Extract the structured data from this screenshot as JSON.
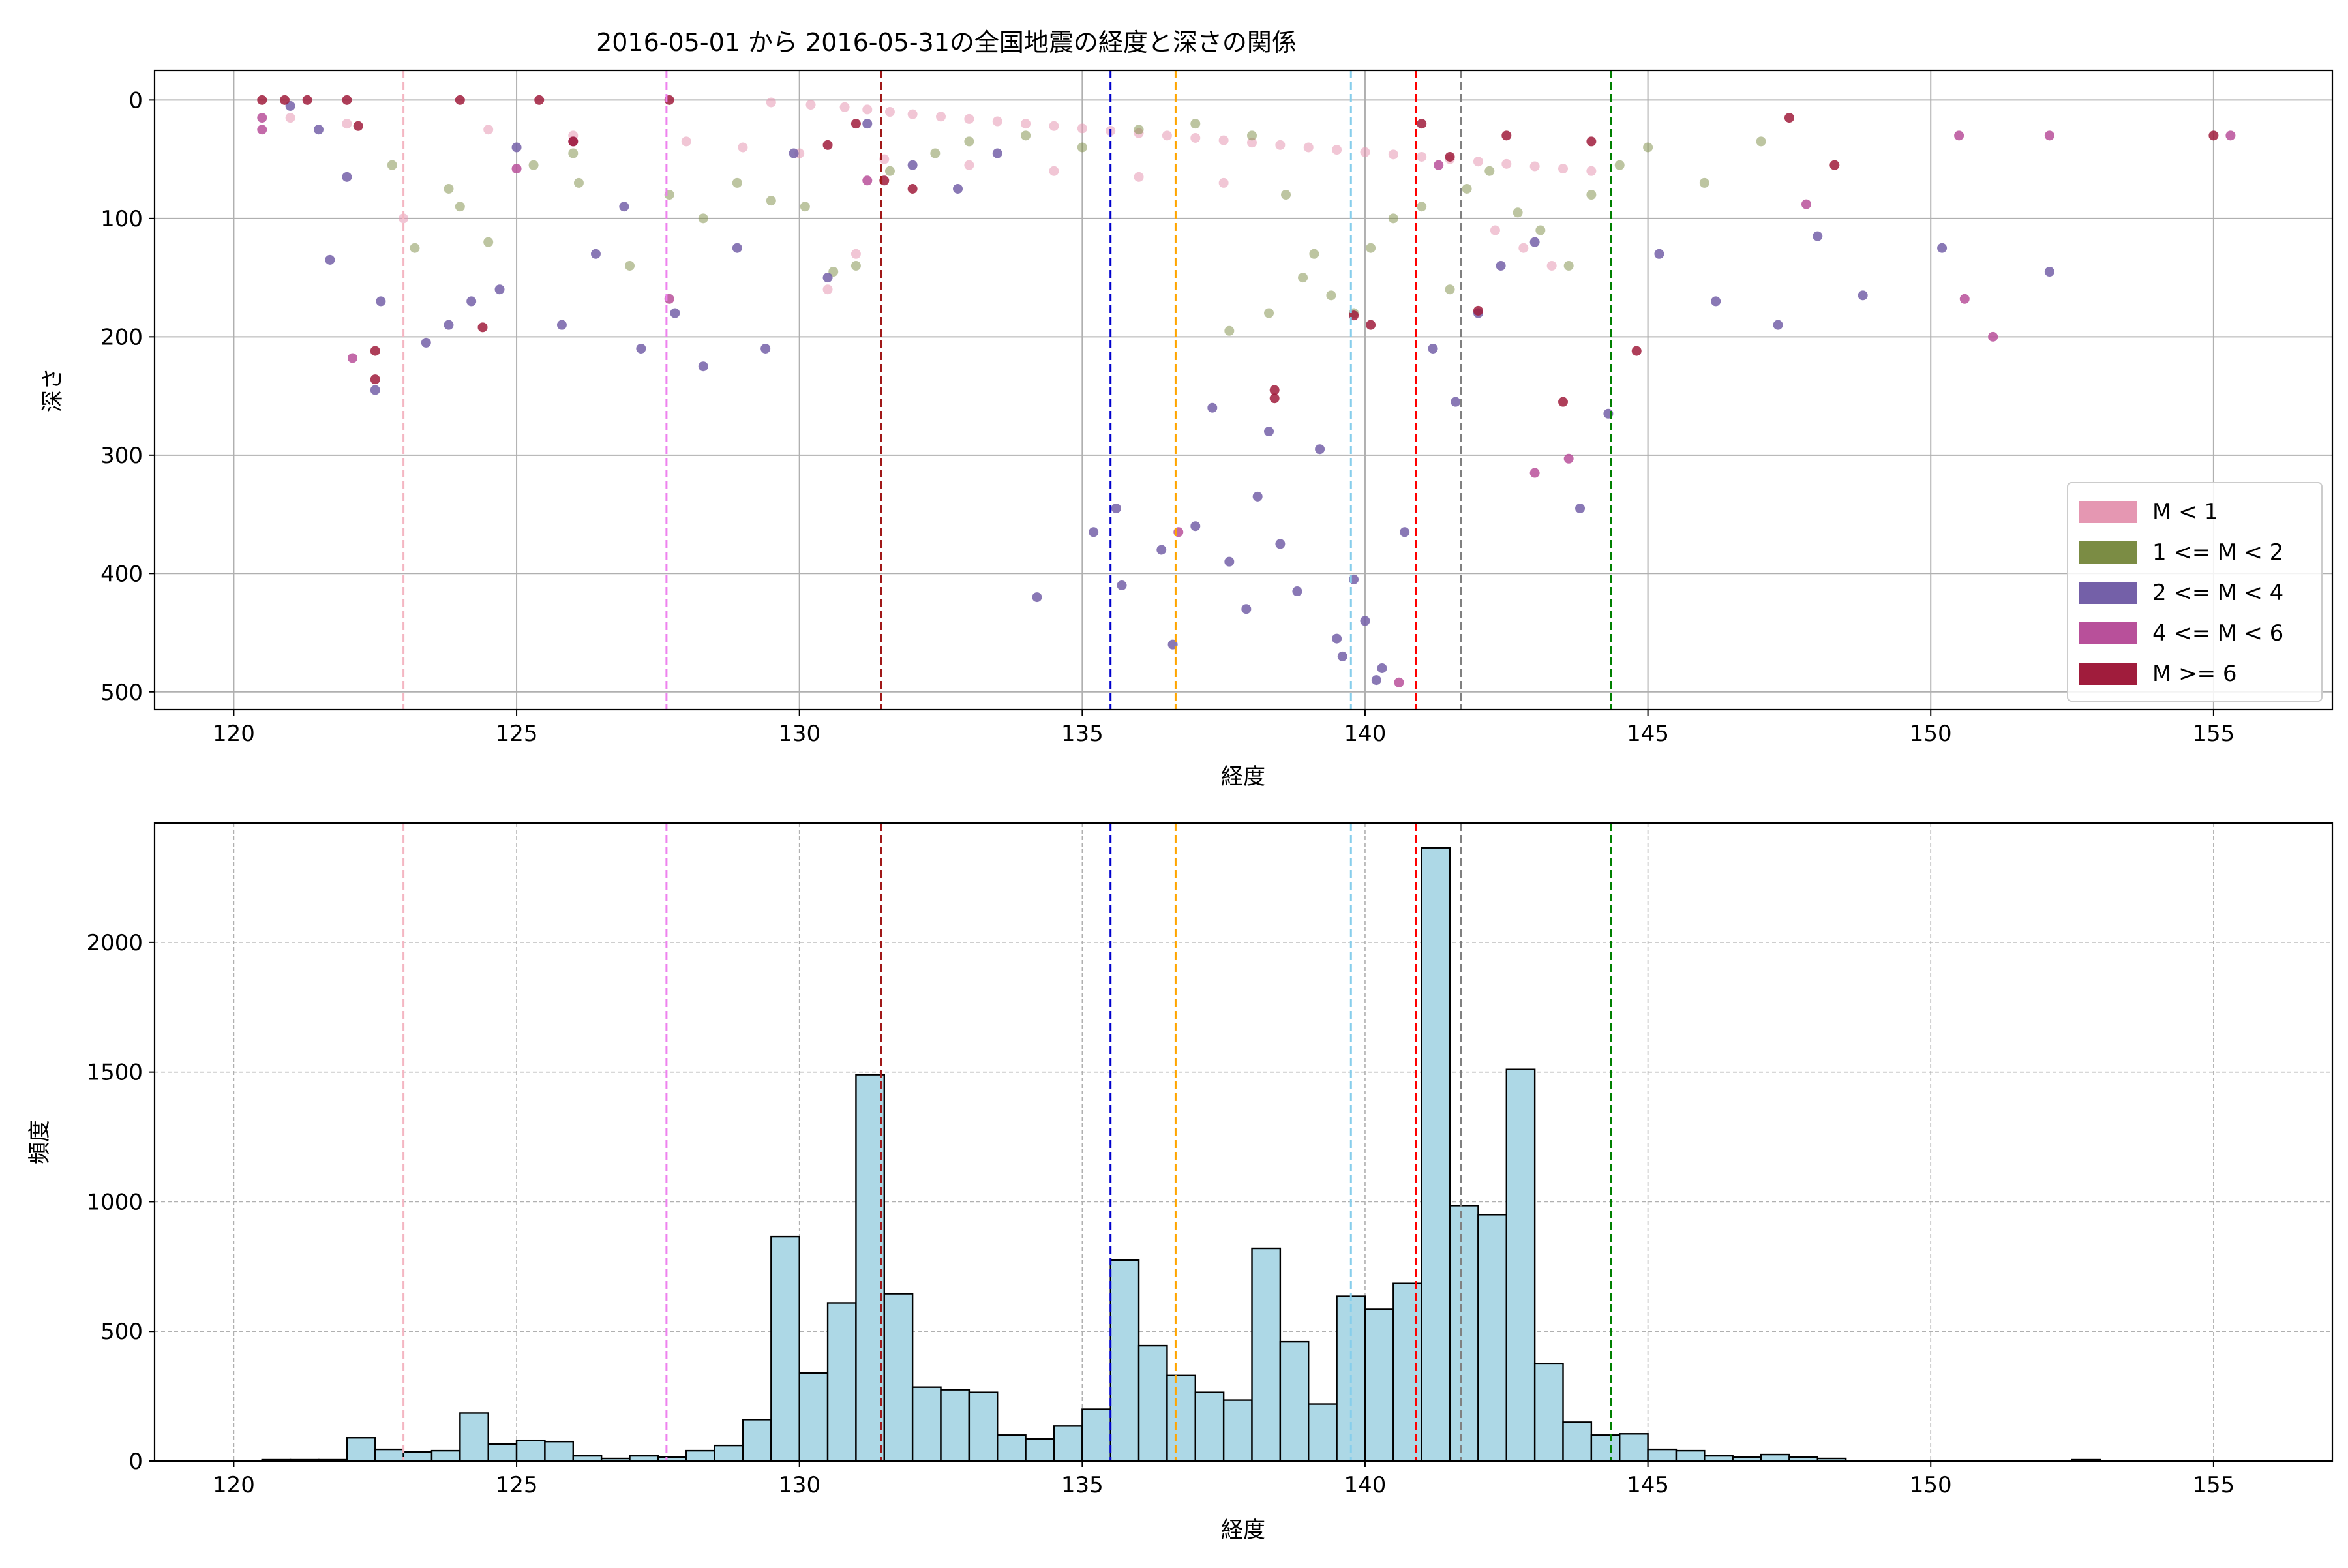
{
  "figure_title": "2016-05-01 から 2016-05-31の全国地震の経度と深さの関係",
  "colors": {
    "m_lt1": "#e597b2",
    "m_1_2": "#7b8c44",
    "m_2_4": "#7460a8",
    "m_4_6": "#b8509a",
    "m_ge6": "#a01c3c",
    "hist_fill": "#add8e6",
    "hist_edge": "#000000"
  },
  "vlines": [
    {
      "x": 123.0,
      "color": "#f4b6c2"
    },
    {
      "x": 127.65,
      "color": "#ee82ee"
    },
    {
      "x": 131.45,
      "color": "#a01818"
    },
    {
      "x": 135.5,
      "color": "#0000cc"
    },
    {
      "x": 136.65,
      "color": "#ffa500"
    },
    {
      "x": 139.75,
      "color": "#87ceeb"
    },
    {
      "x": 140.9,
      "color": "#ff0000"
    },
    {
      "x": 141.7,
      "color": "#808080"
    },
    {
      "x": 144.35,
      "color": "#008000"
    }
  ],
  "chart_data": [
    {
      "type": "scatter",
      "title": "2016-05-01 から 2016-05-31の全国地震の経度と深さの関係",
      "xlabel": "経度",
      "ylabel": "深さ",
      "xlim": [
        118.6,
        157.1
      ],
      "ylim": [
        515,
        -25
      ],
      "y_inverted": true,
      "xticks": [
        120,
        125,
        130,
        135,
        140,
        145,
        150,
        155
      ],
      "yticks": [
        0,
        100,
        200,
        300,
        400,
        500
      ],
      "grid": true,
      "legend_position": "lower-right",
      "legend": [
        "M < 1",
        "1 <= M < 2",
        "2 <= M < 4",
        "4 <= M < 6",
        "M >= 6"
      ],
      "series": [
        {
          "name": "M < 1",
          "color_key": "m_lt1",
          "points": [
            [
              123.0,
              100
            ],
            [
              129.5,
              2
            ],
            [
              130.2,
              4
            ],
            [
              130.8,
              6
            ],
            [
              131.2,
              8
            ],
            [
              131.6,
              10
            ],
            [
              132.0,
              12
            ],
            [
              132.5,
              14
            ],
            [
              133.0,
              16
            ],
            [
              133.5,
              18
            ],
            [
              134.0,
              20
            ],
            [
              134.5,
              22
            ],
            [
              135.0,
              24
            ],
            [
              135.5,
              26
            ],
            [
              136.0,
              28
            ],
            [
              136.5,
              30
            ],
            [
              137.0,
              32
            ],
            [
              137.5,
              34
            ],
            [
              138.0,
              36
            ],
            [
              138.5,
              38
            ],
            [
              139.0,
              40
            ],
            [
              139.5,
              42
            ],
            [
              140.0,
              44
            ],
            [
              140.5,
              46
            ],
            [
              141.0,
              48
            ],
            [
              141.5,
              50
            ],
            [
              142.0,
              52
            ],
            [
              142.5,
              54
            ],
            [
              143.0,
              56
            ],
            [
              143.5,
              58
            ],
            [
              144.0,
              60
            ],
            [
              131.0,
              130
            ],
            [
              130.5,
              160
            ],
            [
              142.3,
              110
            ],
            [
              142.8,
              125
            ],
            [
              143.3,
              140
            ],
            [
              121.0,
              15
            ],
            [
              122.0,
              20
            ],
            [
              124.5,
              25
            ],
            [
              126.0,
              30
            ],
            [
              128.0,
              35
            ],
            [
              129.0,
              40
            ],
            [
              130.0,
              45
            ],
            [
              131.5,
              50
            ],
            [
              133.0,
              55
            ],
            [
              134.5,
              60
            ],
            [
              136.0,
              65
            ],
            [
              137.5,
              70
            ]
          ]
        },
        {
          "name": "1 <= M < 2",
          "color_key": "m_1_2",
          "points": [
            [
              122.8,
              55
            ],
            [
              123.2,
              125
            ],
            [
              123.8,
              75
            ],
            [
              124.5,
              120
            ],
            [
              125.3,
              55
            ],
            [
              126.1,
              70
            ],
            [
              127.0,
              140
            ],
            [
              127.7,
              80
            ],
            [
              128.3,
              100
            ],
            [
              128.9,
              70
            ],
            [
              129.5,
              85
            ],
            [
              130.1,
              90
            ],
            [
              130.6,
              145
            ],
            [
              131.0,
              140
            ],
            [
              131.6,
              60
            ],
            [
              132.4,
              45
            ],
            [
              133.0,
              35
            ],
            [
              134.0,
              30
            ],
            [
              135.0,
              40
            ],
            [
              136.0,
              25
            ],
            [
              137.0,
              20
            ],
            [
              138.0,
              30
            ],
            [
              138.6,
              80
            ],
            [
              138.9,
              150
            ],
            [
              139.1,
              130
            ],
            [
              139.4,
              165
            ],
            [
              139.8,
              180
            ],
            [
              140.1,
              125
            ],
            [
              140.5,
              100
            ],
            [
              141.0,
              90
            ],
            [
              141.5,
              160
            ],
            [
              141.8,
              75
            ],
            [
              142.2,
              60
            ],
            [
              142.7,
              95
            ],
            [
              143.1,
              110
            ],
            [
              143.6,
              140
            ],
            [
              144.0,
              80
            ],
            [
              144.5,
              55
            ],
            [
              145.0,
              40
            ],
            [
              146.0,
              70
            ],
            [
              147.0,
              35
            ],
            [
              137.6,
              195
            ],
            [
              138.3,
              180
            ],
            [
              126.0,
              45
            ],
            [
              124.0,
              90
            ]
          ]
        },
        {
          "name": "2 <= M < 4",
          "color_key": "m_2_4",
          "points": [
            [
              121.0,
              5
            ],
            [
              121.5,
              25
            ],
            [
              121.7,
              135
            ],
            [
              122.0,
              65
            ],
            [
              122.5,
              245
            ],
            [
              122.6,
              170
            ],
            [
              123.4,
              205
            ],
            [
              123.8,
              190
            ],
            [
              124.2,
              170
            ],
            [
              124.7,
              160
            ],
            [
              125.0,
              40
            ],
            [
              125.8,
              190
            ],
            [
              126.4,
              130
            ],
            [
              126.9,
              90
            ],
            [
              127.2,
              210
            ],
            [
              127.8,
              180
            ],
            [
              128.3,
              225
            ],
            [
              128.9,
              125
            ],
            [
              129.4,
              210
            ],
            [
              129.9,
              45
            ],
            [
              130.5,
              150
            ],
            [
              131.2,
              20
            ],
            [
              132.0,
              55
            ],
            [
              132.8,
              75
            ],
            [
              133.5,
              45
            ],
            [
              134.2,
              420
            ],
            [
              135.2,
              365
            ],
            [
              135.6,
              345
            ],
            [
              135.7,
              410
            ],
            [
              136.4,
              380
            ],
            [
              136.6,
              460
            ],
            [
              137.0,
              360
            ],
            [
              137.3,
              260
            ],
            [
              137.6,
              390
            ],
            [
              137.9,
              430
            ],
            [
              138.1,
              335
            ],
            [
              138.3,
              280
            ],
            [
              138.5,
              375
            ],
            [
              138.8,
              415
            ],
            [
              139.2,
              295
            ],
            [
              139.5,
              455
            ],
            [
              139.8,
              405
            ],
            [
              140.0,
              440
            ],
            [
              140.3,
              480
            ],
            [
              140.7,
              365
            ],
            [
              141.2,
              210
            ],
            [
              141.6,
              255
            ],
            [
              142.0,
              180
            ],
            [
              142.4,
              140
            ],
            [
              143.0,
              120
            ],
            [
              143.8,
              345
            ],
            [
              144.3,
              265
            ],
            [
              145.2,
              130
            ],
            [
              146.2,
              170
            ],
            [
              147.3,
              190
            ],
            [
              148.0,
              115
            ],
            [
              148.8,
              165
            ],
            [
              150.2,
              125
            ],
            [
              152.1,
              145
            ],
            [
              139.6,
              470
            ],
            [
              140.2,
              490
            ]
          ]
        },
        {
          "name": "4 <= M < 6",
          "color_key": "m_4_6",
          "points": [
            [
              120.5,
              15
            ],
            [
              120.5,
              25
            ],
            [
              122.1,
              218
            ],
            [
              125.0,
              58
            ],
            [
              126.0,
              35
            ],
            [
              127.7,
              168
            ],
            [
              131.2,
              68
            ],
            [
              136.7,
              365
            ],
            [
              140.6,
              492
            ],
            [
              143.0,
              315
            ],
            [
              143.6,
              303
            ],
            [
              150.5,
              30
            ],
            [
              150.6,
              168
            ],
            [
              151.1,
              200
            ],
            [
              152.1,
              30
            ],
            [
              155.3,
              30
            ],
            [
              147.8,
              88
            ],
            [
              141.3,
              55
            ]
          ]
        },
        {
          "name": "M >= 6",
          "color_key": "m_ge6",
          "points": [
            [
              120.5,
              0
            ],
            [
              120.9,
              0
            ],
            [
              121.3,
              0
            ],
            [
              122.0,
              0
            ],
            [
              122.2,
              22
            ],
            [
              122.5,
              212
            ],
            [
              122.5,
              236
            ],
            [
              124.0,
              0
            ],
            [
              124.4,
              192
            ],
            [
              125.4,
              0
            ],
            [
              126.0,
              35
            ],
            [
              127.7,
              0
            ],
            [
              130.5,
              38
            ],
            [
              131.0,
              20
            ],
            [
              131.5,
              68
            ],
            [
              132.0,
              75
            ],
            [
              138.4,
              245
            ],
            [
              138.4,
              252
            ],
            [
              139.8,
              182
            ],
            [
              140.1,
              190
            ],
            [
              141.0,
              20
            ],
            [
              142.0,
              178
            ],
            [
              142.5,
              30
            ],
            [
              143.5,
              255
            ],
            [
              144.0,
              35
            ],
            [
              144.8,
              212
            ],
            [
              147.5,
              15
            ],
            [
              148.3,
              55
            ],
            [
              155.0,
              30
            ],
            [
              141.5,
              48
            ]
          ]
        }
      ]
    },
    {
      "type": "bar",
      "xlabel": "経度",
      "ylabel": "頻度",
      "xlim": [
        118.6,
        157.1
      ],
      "ylim": [
        0,
        2460
      ],
      "xticks": [
        120,
        125,
        130,
        135,
        140,
        145,
        150,
        155
      ],
      "yticks": [
        0,
        500,
        1000,
        1500,
        2000
      ],
      "grid": true,
      "bin_start": 120.5,
      "bin_width": 0.5,
      "values": [
        5,
        5,
        5,
        90,
        45,
        35,
        40,
        185,
        65,
        80,
        75,
        20,
        10,
        20,
        15,
        40,
        60,
        160,
        865,
        340,
        610,
        1490,
        645,
        285,
        275,
        265,
        100,
        85,
        135,
        200,
        775,
        445,
        330,
        265,
        235,
        820,
        460,
        220,
        635,
        585,
        685,
        2365,
        985,
        950,
        1510,
        375,
        150,
        100,
        105,
        45,
        40,
        20,
        15,
        25,
        15,
        10,
        0,
        0,
        0,
        0,
        0,
        0,
        2,
        0,
        5,
        0,
        0,
        0,
        0,
        0,
        0
      ]
    }
  ]
}
